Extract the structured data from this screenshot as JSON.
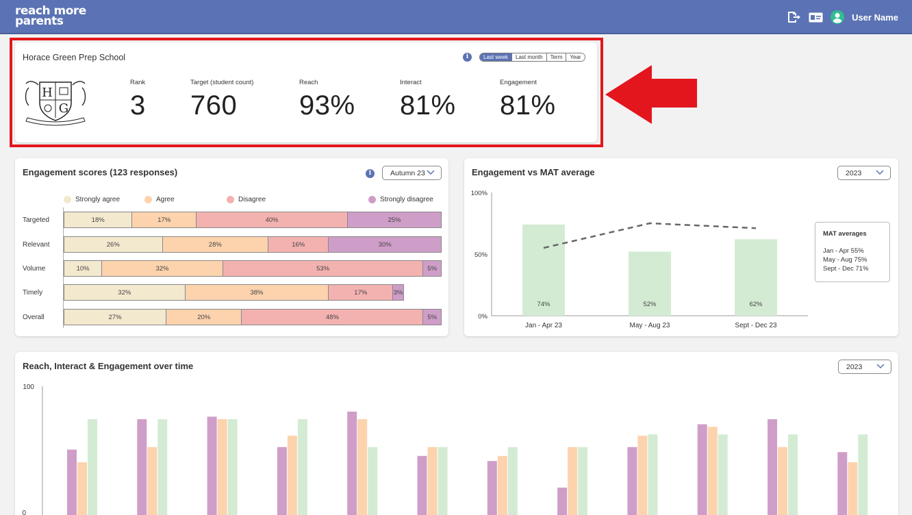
{
  "header": {
    "logo_line1": "reach more",
    "logo_line2": "parents",
    "user_name": "User Name",
    "icons": [
      "logout-icon",
      "id-card-icon",
      "user-avatar-icon"
    ],
    "bg_color": "#5b73b4"
  },
  "school": {
    "name": "Horace Green Prep School",
    "periods": [
      "Last week",
      "Last month",
      "Term",
      "Year"
    ],
    "active_period": "Last week",
    "crest_letters": [
      "H",
      "G"
    ],
    "stats": [
      {
        "label": "Rank",
        "value": "3"
      },
      {
        "label": "Target (student count)",
        "value": "760"
      },
      {
        "label": "Reach",
        "value": "93%"
      },
      {
        "label": "Interact",
        "value": "81%"
      },
      {
        "label": "Engagement",
        "value": "81%"
      }
    ],
    "highlight_color": "#e3161d"
  },
  "engagement": {
    "title": "Engagement scores (123 responses)",
    "dropdown": "Autumn 23",
    "legend": [
      {
        "label": "Strongly agree",
        "color": "#f3e9cf"
      },
      {
        "label": "Agree",
        "color": "#fcd3ad"
      },
      {
        "label": "Disagree",
        "color": "#f3b2b0"
      },
      {
        "label": "Strongly disagree",
        "color": "#cf9ec8"
      }
    ],
    "rows": [
      {
        "label": "Targeted",
        "values": [
          18,
          17,
          40,
          25
        ]
      },
      {
        "label": "Relevant",
        "values": [
          26,
          28,
          16,
          30
        ]
      },
      {
        "label": "Volume",
        "values": [
          10,
          32,
          53,
          5
        ]
      },
      {
        "label": "Timely",
        "values": [
          32,
          38,
          17,
          3
        ]
      },
      {
        "label": "Overall",
        "values": [
          27,
          20,
          48,
          5
        ]
      }
    ]
  },
  "mat": {
    "title": "Engagement vs MAT average",
    "dropdown": "2023",
    "legend_title": "MAT averages",
    "legend_lines": [
      "Jan - Apr 55%",
      "May - Aug 75%",
      "Sept - Dec 71%"
    ]
  },
  "overtime": {
    "title": "Reach, Interact & Engagement over time",
    "dropdown": "2023"
  },
  "chart_data": [
    {
      "type": "bar",
      "title": "Engagement vs MAT average",
      "categories": [
        "Jan - Apr 23",
        "May - Aug 23",
        "Sept - Dec 23"
      ],
      "series": [
        {
          "values": [
            74,
            52,
            62
          ],
          "color": "#d3ebd3"
        },
        {
          "values": [
            55,
            75,
            71
          ],
          "color": "#666666",
          "style": "dashed-line"
        }
      ],
      "ylim": [
        0,
        100
      ],
      "yticks": [
        "100%",
        "50%",
        "0%"
      ]
    },
    {
      "type": "bar",
      "title": "Reach, Interact & Engagement over time",
      "groups": 12,
      "series": [
        {
          "values": [
            50,
            74,
            76,
            52,
            80,
            45,
            41,
            20,
            52,
            70,
            74,
            48
          ],
          "color": "#cf9ec8"
        },
        {
          "values": [
            40,
            52,
            74,
            61,
            74,
            52,
            45,
            52,
            61,
            68,
            52,
            40
          ],
          "color": "#fcd3ad"
        },
        {
          "values": [
            74,
            74,
            74,
            74,
            52,
            52,
            52,
            52,
            62,
            62,
            62,
            62
          ],
          "color": "#d3ebd3"
        }
      ],
      "ylim": [
        0,
        100
      ],
      "yticks": [
        "100",
        "0"
      ]
    }
  ]
}
